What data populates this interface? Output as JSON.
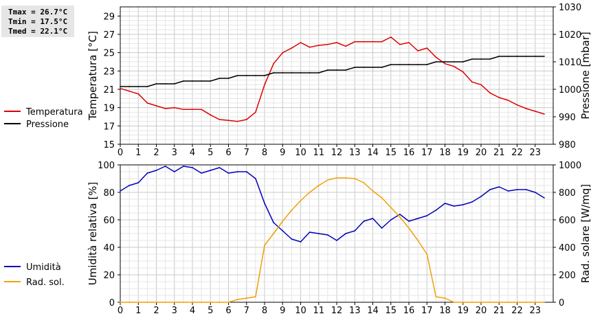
{
  "stats": {
    "tmax": "Tmax = 26.7°C",
    "tmin": "Tmin = 17.5°C",
    "tmed": "Tmed = 22.1°C"
  },
  "chart_data": [
    {
      "type": "line",
      "x_ticks": [
        "0",
        "1",
        "2",
        "3",
        "4",
        "5",
        "6",
        "7",
        "8",
        "9",
        "10",
        "11",
        "12",
        "13",
        "14",
        "15",
        "16",
        "17",
        "18",
        "19",
        "20",
        "21",
        "22",
        "23"
      ],
      "xlim": [
        0,
        24
      ],
      "ylabel_left": "Temperatura [°C]",
      "ylabel_right": "Pressione [mbar]",
      "ylim_left": [
        15,
        30
      ],
      "yticks_left": [
        15,
        17,
        19,
        21,
        23,
        25,
        27,
        29
      ],
      "ylim_right": [
        980,
        1030
      ],
      "yticks_right": [
        980,
        990,
        1000,
        1010,
        1020,
        1030
      ],
      "grid": true,
      "legend_placement": "left",
      "series": [
        {
          "name": "Temperatura",
          "axis": "left",
          "color": "#dd0000",
          "x": [
            0,
            0.5,
            1,
            1.5,
            2,
            2.5,
            3,
            3.5,
            4,
            4.5,
            5,
            5.5,
            6,
            6.5,
            7,
            7.5,
            8,
            8.5,
            9,
            9.5,
            10,
            10.5,
            11,
            11.5,
            12,
            12.5,
            13,
            13.5,
            14,
            14.5,
            15,
            15.5,
            16,
            16.5,
            17,
            17.5,
            18,
            18.5,
            19,
            19.5,
            20,
            20.5,
            21,
            21.5,
            22,
            22.5,
            23,
            23.5
          ],
          "values": [
            21.1,
            20.8,
            20.5,
            19.5,
            19.2,
            18.9,
            19.0,
            18.8,
            18.8,
            18.8,
            18.2,
            17.7,
            17.6,
            17.5,
            17.7,
            18.5,
            21.5,
            23.8,
            25.0,
            25.5,
            26.1,
            25.6,
            25.8,
            25.9,
            26.1,
            25.7,
            26.2,
            26.2,
            26.2,
            26.2,
            26.7,
            25.9,
            26.1,
            25.2,
            25.5,
            24.5,
            23.8,
            23.5,
            22.9,
            21.8,
            21.5,
            20.6,
            20.1,
            19.8,
            19.3,
            18.9,
            18.6,
            18.3
          ]
        },
        {
          "name": "Pressione",
          "axis": "right",
          "color": "#000000",
          "x": [
            0,
            0.5,
            1,
            1.5,
            2,
            2.5,
            3,
            3.5,
            4,
            4.5,
            5,
            5.5,
            6,
            6.5,
            7,
            7.5,
            8,
            8.5,
            9,
            9.5,
            10,
            10.5,
            11,
            11.5,
            12,
            12.5,
            13,
            13.5,
            14,
            14.5,
            15,
            15.5,
            16,
            16.5,
            17,
            17.5,
            18,
            18.5,
            19,
            19.5,
            20,
            20.5,
            21,
            21.5,
            22,
            22.5,
            23,
            23.5
          ],
          "values": [
            1001,
            1001,
            1001,
            1001,
            1002,
            1002,
            1002,
            1003,
            1003,
            1003,
            1003,
            1004,
            1004,
            1005,
            1005,
            1005,
            1005,
            1006,
            1006,
            1006,
            1006,
            1006,
            1006,
            1007,
            1007,
            1007,
            1008,
            1008,
            1008,
            1008,
            1009,
            1009,
            1009,
            1009,
            1009,
            1010,
            1010,
            1010,
            1010,
            1011,
            1011,
            1011,
            1012,
            1012,
            1012,
            1012,
            1012,
            1012
          ]
        }
      ]
    },
    {
      "type": "line",
      "x_ticks": [
        "0",
        "1",
        "2",
        "3",
        "4",
        "5",
        "6",
        "7",
        "8",
        "9",
        "10",
        "11",
        "12",
        "13",
        "14",
        "15",
        "16",
        "17",
        "18",
        "19",
        "20",
        "21",
        "22",
        "23"
      ],
      "xlim": [
        0,
        24
      ],
      "ylabel_left": "Umidità relativa [%]",
      "ylabel_right": "Rad. solare [W/mq]",
      "ylim_left": [
        0,
        100
      ],
      "yticks_left": [
        0,
        20,
        40,
        60,
        80,
        100
      ],
      "ylim_right": [
        0,
        1000
      ],
      "yticks_right": [
        0,
        200,
        400,
        600,
        800,
        1000
      ],
      "grid": true,
      "legend_placement": "left",
      "series": [
        {
          "name": "Umidità",
          "axis": "left",
          "color": "#0000bb",
          "x": [
            0,
            0.5,
            1,
            1.5,
            2,
            2.5,
            3,
            3.5,
            4,
            4.5,
            5,
            5.5,
            6,
            6.5,
            7,
            7.5,
            8,
            8.5,
            9,
            9.5,
            10,
            10.5,
            11,
            11.5,
            12,
            12.5,
            13,
            13.5,
            14,
            14.5,
            15,
            15.5,
            16,
            16.5,
            17,
            17.5,
            18,
            18.5,
            19,
            19.5,
            20,
            20.5,
            21,
            21.5,
            22,
            22.5,
            23,
            23.5
          ],
          "values": [
            81,
            85,
            87,
            94,
            96,
            99,
            95,
            99,
            98,
            94,
            96,
            98,
            94,
            95,
            95,
            90,
            72,
            58,
            52,
            46,
            44,
            51,
            50,
            49,
            45,
            50,
            52,
            59,
            61,
            54,
            60,
            64,
            59,
            61,
            63,
            67,
            72,
            70,
            71,
            73,
            77,
            82,
            84,
            81,
            82,
            82,
            80,
            76
          ]
        },
        {
          "name": "Rad. sol.",
          "axis": "right",
          "color": "#f0a000",
          "x": [
            0,
            0.5,
            1,
            1.5,
            2,
            2.5,
            3,
            3.5,
            4,
            4.5,
            5,
            5.5,
            6,
            6.5,
            7,
            7.5,
            8,
            8.5,
            9,
            9.5,
            10,
            10.5,
            11,
            11.5,
            12,
            12.5,
            13,
            13.5,
            14,
            14.5,
            15,
            15.5,
            16,
            16.5,
            17,
            17.5,
            18,
            18.5,
            19,
            19.5,
            20,
            20.5,
            21,
            21.5,
            22,
            22.5,
            23,
            23.5
          ],
          "values": [
            0,
            0,
            0,
            0,
            0,
            0,
            0,
            0,
            0,
            0,
            0,
            0,
            0,
            20,
            30,
            40,
            415,
            500,
            590,
            670,
            740,
            800,
            850,
            890,
            905,
            905,
            900,
            870,
            810,
            760,
            690,
            620,
            540,
            450,
            350,
            40,
            30,
            0,
            0,
            0,
            0,
            0,
            0,
            0,
            0,
            0,
            0,
            0
          ]
        }
      ]
    }
  ]
}
